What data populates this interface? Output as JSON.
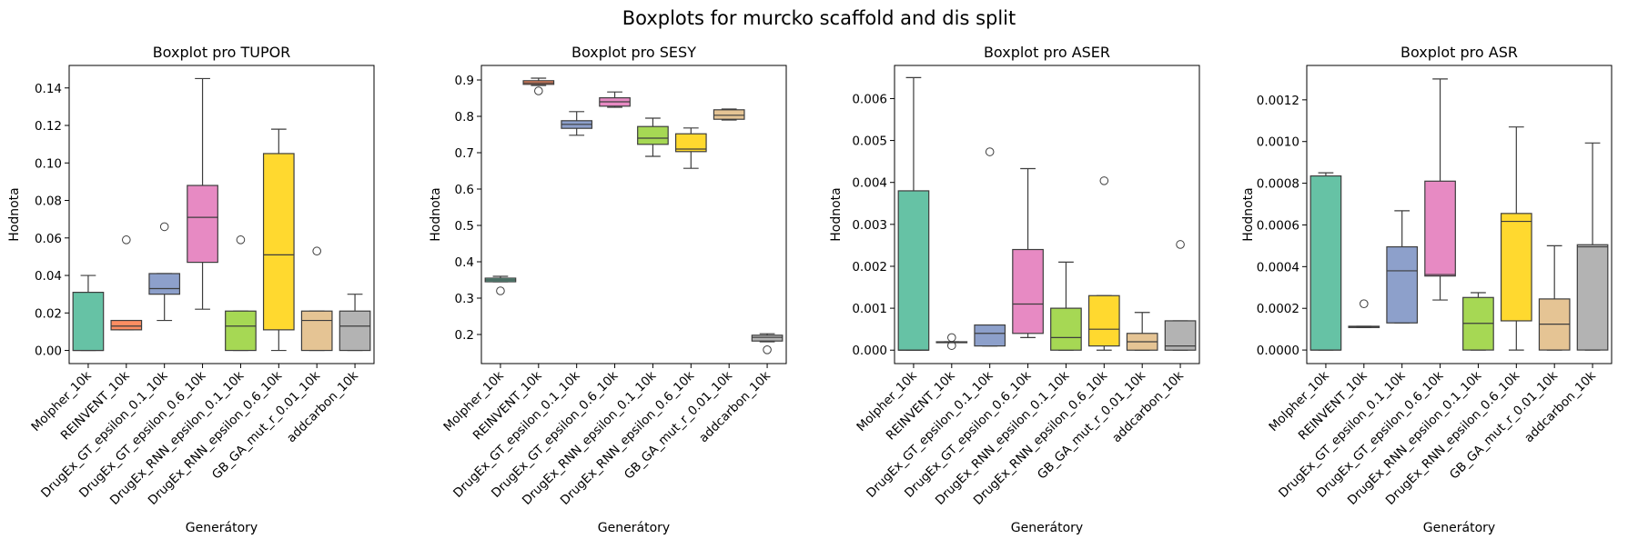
{
  "figure": {
    "title": "Boxplots for murcko scaffold and dis split"
  },
  "colors": {
    "palette": [
      "#66c2a5",
      "#fc8d62",
      "#8da0cb",
      "#e78ac3",
      "#a6d854",
      "#ffd92f",
      "#e5c494",
      "#b3b3b3"
    ],
    "box_edge": "#3d3d3d",
    "frame": "#000000"
  },
  "chart_data": [
    {
      "type": "box",
      "title": "Boxplot pro TUPOR",
      "xlabel": "Generátory",
      "ylabel": "Hodnota",
      "ylim": [
        -0.007,
        0.152
      ],
      "yticks": [
        0.0,
        0.02,
        0.04,
        0.06,
        0.08,
        0.1,
        0.12,
        0.14
      ],
      "ytick_labels": [
        "0.00",
        "0.02",
        "0.04",
        "0.06",
        "0.08",
        "0.10",
        "0.12",
        "0.14"
      ],
      "categories": [
        "Molpher_10k",
        "REINVENT_10k",
        "DrugEx_GT_epsilon_0.1_10k",
        "DrugEx_GT_epsilon_0.6_10k",
        "DrugEx_RNN_epsilon_0.1_10k",
        "DrugEx_RNN_epsilon_0.6_10k",
        "GB_GA_mut_r_0.01_10k",
        "addcarbon_10k"
      ],
      "boxes": [
        {
          "whislo": 0.0,
          "q1": 0.0,
          "med": 0.0,
          "q3": 0.031,
          "whishi": 0.04,
          "fliers": []
        },
        {
          "whislo": 0.011,
          "q1": 0.011,
          "med": 0.013,
          "q3": 0.016,
          "whishi": 0.016,
          "fliers": [
            0.059
          ]
        },
        {
          "whislo": 0.016,
          "q1": 0.03,
          "med": 0.033,
          "q3": 0.041,
          "whishi": 0.041,
          "fliers": [
            0.066
          ]
        },
        {
          "whislo": 0.022,
          "q1": 0.047,
          "med": 0.071,
          "q3": 0.088,
          "whishi": 0.145,
          "fliers": []
        },
        {
          "whislo": 0.0,
          "q1": 0.0,
          "med": 0.013,
          "q3": 0.021,
          "whishi": 0.021,
          "fliers": [
            0.059
          ]
        },
        {
          "whislo": 0.0,
          "q1": 0.011,
          "med": 0.051,
          "q3": 0.105,
          "whishi": 0.118,
          "fliers": []
        },
        {
          "whislo": 0.0,
          "q1": 0.0,
          "med": 0.016,
          "q3": 0.021,
          "whishi": 0.021,
          "fliers": [
            0.053
          ]
        },
        {
          "whislo": 0.0,
          "q1": 0.0,
          "med": 0.013,
          "q3": 0.021,
          "whishi": 0.03,
          "fliers": []
        }
      ]
    },
    {
      "type": "box",
      "title": "Boxplot pro SESY",
      "xlabel": "Generátory",
      "ylabel": "Hodnota",
      "ylim": [
        0.12,
        0.94
      ],
      "yticks": [
        0.2,
        0.3,
        0.4,
        0.5,
        0.6,
        0.7,
        0.8,
        0.9
      ],
      "ytick_labels": [
        "0.2",
        "0.3",
        "0.4",
        "0.5",
        "0.6",
        "0.7",
        "0.8",
        "0.9"
      ],
      "categories": [
        "Molpher_10k",
        "REINVENT_10k",
        "DrugEx_GT_epsilon_0.1_10k",
        "DrugEx_GT_epsilon_0.6_10k",
        "DrugEx_RNN_epsilon_0.1_10k",
        "DrugEx_RNN_epsilon_0.6_10k",
        "GB_GA_mut_r_0.01_10k",
        "addcarbon_10k"
      ],
      "boxes": [
        {
          "whislo": 0.345,
          "q1": 0.345,
          "med": 0.35,
          "q3": 0.355,
          "whishi": 0.36,
          "fliers": [
            0.32
          ]
        },
        {
          "whislo": 0.885,
          "q1": 0.888,
          "med": 0.892,
          "q3": 0.898,
          "whishi": 0.905,
          "fliers": [
            0.87
          ]
        },
        {
          "whislo": 0.748,
          "q1": 0.767,
          "med": 0.778,
          "q3": 0.788,
          "whishi": 0.813,
          "fliers": []
        },
        {
          "whislo": 0.825,
          "q1": 0.828,
          "med": 0.84,
          "q3": 0.851,
          "whishi": 0.867,
          "fliers": []
        },
        {
          "whislo": 0.69,
          "q1": 0.723,
          "med": 0.74,
          "q3": 0.772,
          "whishi": 0.795,
          "fliers": []
        },
        {
          "whislo": 0.657,
          "q1": 0.703,
          "med": 0.71,
          "q3": 0.752,
          "whishi": 0.768,
          "fliers": []
        },
        {
          "whislo": 0.79,
          "q1": 0.792,
          "med": 0.803,
          "q3": 0.818,
          "whishi": 0.82,
          "fliers": []
        },
        {
          "whislo": 0.18,
          "q1": 0.182,
          "med": 0.192,
          "q3": 0.198,
          "whishi": 0.202,
          "fliers": [
            0.158
          ]
        }
      ]
    },
    {
      "type": "box",
      "title": "Boxplot pro ASER",
      "xlabel": "Generátory",
      "ylabel": "Hodnota",
      "ylim": [
        -0.00032,
        0.00679
      ],
      "yticks": [
        0.0,
        0.001,
        0.002,
        0.003,
        0.004,
        0.005,
        0.006
      ],
      "ytick_labels": [
        "0.000",
        "0.001",
        "0.002",
        "0.003",
        "0.004",
        "0.005",
        "0.006"
      ],
      "categories": [
        "Molpher_10k",
        "REINVENT_10k",
        "DrugEx_GT_epsilon_0.1_10k",
        "DrugEx_GT_epsilon_0.6_10k",
        "DrugEx_RNN_epsilon_0.1_10k",
        "DrugEx_RNN_epsilon_0.6_10k",
        "GB_GA_mut_r_0.01_10k",
        "addcarbon_10k"
      ],
      "boxes": [
        {
          "whislo": 0.0,
          "q1": 0.0,
          "med": 0.0,
          "q3": 0.0038,
          "whishi": 0.0065,
          "fliers": []
        },
        {
          "whislo": 0.00018,
          "q1": 0.00018,
          "med": 0.00019,
          "q3": 0.0002,
          "whishi": 0.0002,
          "fliers": [
            0.0003,
            0.00011
          ]
        },
        {
          "whislo": 0.0001,
          "q1": 0.0001,
          "med": 0.0004,
          "q3": 0.0006,
          "whishi": 0.0006,
          "fliers": [
            0.00473
          ]
        },
        {
          "whislo": 0.0003,
          "q1": 0.0004,
          "med": 0.0011,
          "q3": 0.0024,
          "whishi": 0.00433,
          "fliers": []
        },
        {
          "whislo": 0.0,
          "q1": 0.0,
          "med": 0.0003,
          "q3": 0.001,
          "whishi": 0.0021,
          "fliers": []
        },
        {
          "whislo": 0.0,
          "q1": 0.0001,
          "med": 0.0005,
          "q3": 0.0013,
          "whishi": 0.0013,
          "fliers": [
            0.00404
          ]
        },
        {
          "whislo": 0.0,
          "q1": 0.0,
          "med": 0.0002,
          "q3": 0.0004,
          "whishi": 0.0009,
          "fliers": []
        },
        {
          "whislo": 0.0,
          "q1": 0.0,
          "med": 0.0001,
          "q3": 0.0007,
          "whishi": 0.0007,
          "fliers": [
            0.00252
          ]
        }
      ]
    },
    {
      "type": "box",
      "title": "Boxplot pro ASR",
      "xlabel": "Generátory",
      "ylabel": "Hodnota",
      "ylim": [
        -6.5e-05,
        0.001365
      ],
      "yticks": [
        0.0,
        0.0002,
        0.0004,
        0.0006,
        0.0008,
        0.001,
        0.0012
      ],
      "ytick_labels": [
        "0.0000",
        "0.0002",
        "0.0004",
        "0.0006",
        "0.0008",
        "0.0010",
        "0.0012"
      ],
      "categories": [
        "Molpher_10k",
        "REINVENT_10k",
        "DrugEx_GT_epsilon_0.1_10k",
        "DrugEx_GT_epsilon_0.6_10k",
        "DrugEx_RNN_epsilon_0.1_10k",
        "DrugEx_RNN_epsilon_0.6_10k",
        "GB_GA_mut_r_0.01_10k",
        "addcarbon_10k"
      ],
      "boxes": [
        {
          "whislo": 0.0,
          "q1": 0.0,
          "med": 0.0,
          "q3": 0.000835,
          "whishi": 0.00085,
          "fliers": []
        },
        {
          "whislo": 0.000108,
          "q1": 0.000108,
          "med": 0.000111,
          "q3": 0.000114,
          "whishi": 0.000114,
          "fliers": [
            0.000222
          ]
        },
        {
          "whislo": 0.00013,
          "q1": 0.00013,
          "med": 0.00038,
          "q3": 0.000495,
          "whishi": 0.000668,
          "fliers": []
        },
        {
          "whislo": 0.00024,
          "q1": 0.000355,
          "med": 0.000362,
          "q3": 0.00081,
          "whishi": 0.0013,
          "fliers": []
        },
        {
          "whislo": 0.0,
          "q1": 0.0,
          "med": 0.000128,
          "q3": 0.000252,
          "whishi": 0.000275,
          "fliers": []
        },
        {
          "whislo": 0.0,
          "q1": 0.00014,
          "med": 0.000617,
          "q3": 0.000655,
          "whishi": 0.00107,
          "fliers": []
        },
        {
          "whislo": 0.0,
          "q1": 0.0,
          "med": 0.000124,
          "q3": 0.000245,
          "whishi": 0.0005,
          "fliers": []
        },
        {
          "whislo": 0.0,
          "q1": 0.0,
          "med": 0.000495,
          "q3": 0.000505,
          "whishi": 0.000993,
          "fliers": []
        }
      ]
    }
  ]
}
